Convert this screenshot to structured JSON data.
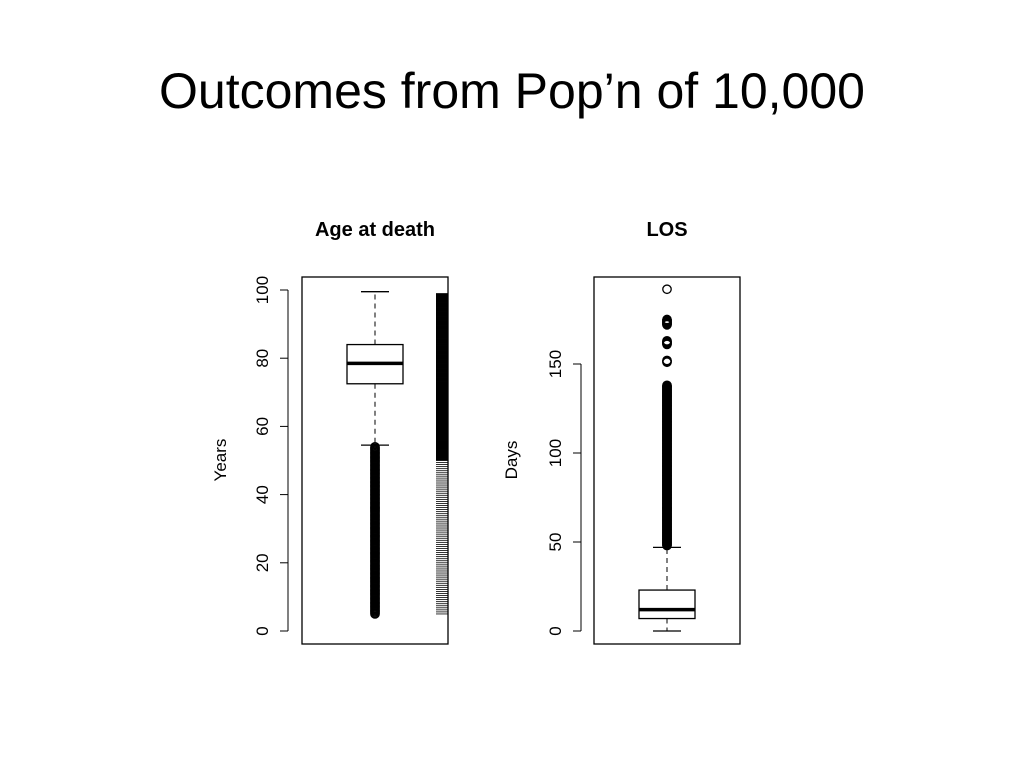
{
  "slide": {
    "title": "Outcomes from Pop’n of 10,000"
  },
  "chart_data": [
    {
      "type": "boxplot",
      "title": "Age at death",
      "ylabel": "Years",
      "ylim": [
        0,
        104
      ],
      "yticks": [
        "0",
        "20",
        "40",
        "60",
        "80",
        "100"
      ],
      "rug": true,
      "rug_range": [
        5,
        99
      ],
      "box": {
        "whisker_low": 54.5,
        "q1": 72.5,
        "median": 78.5,
        "q3": 84,
        "whisker_high": 99.5
      },
      "outliers": [
        5,
        9,
        10,
        11,
        12,
        13,
        14,
        15,
        16,
        17,
        18,
        19,
        20,
        21,
        22,
        23,
        24,
        25,
        26,
        27,
        28,
        29,
        30,
        31,
        32,
        33,
        34,
        35,
        36,
        37,
        38,
        39,
        40,
        41,
        42,
        43,
        44,
        45,
        46,
        47,
        48,
        49,
        50,
        51,
        52,
        53,
        54
      ]
    },
    {
      "type": "boxplot",
      "title": "LOS",
      "ylabel": "Days",
      "ylim": [
        0,
        197
      ],
      "yticks": [
        "0",
        "50",
        "100",
        "150"
      ],
      "box": {
        "whisker_low": 0,
        "q1": 7,
        "median": 12,
        "q3": 23,
        "whisker_high": 47
      },
      "outliers": [
        48,
        52,
        56,
        60,
        64,
        68,
        72,
        76,
        80,
        84,
        88,
        92,
        96,
        100,
        104,
        108,
        112,
        116,
        120,
        124,
        128,
        132,
        136,
        138,
        151,
        152,
        161,
        163,
        172,
        175,
        192
      ]
    }
  ]
}
